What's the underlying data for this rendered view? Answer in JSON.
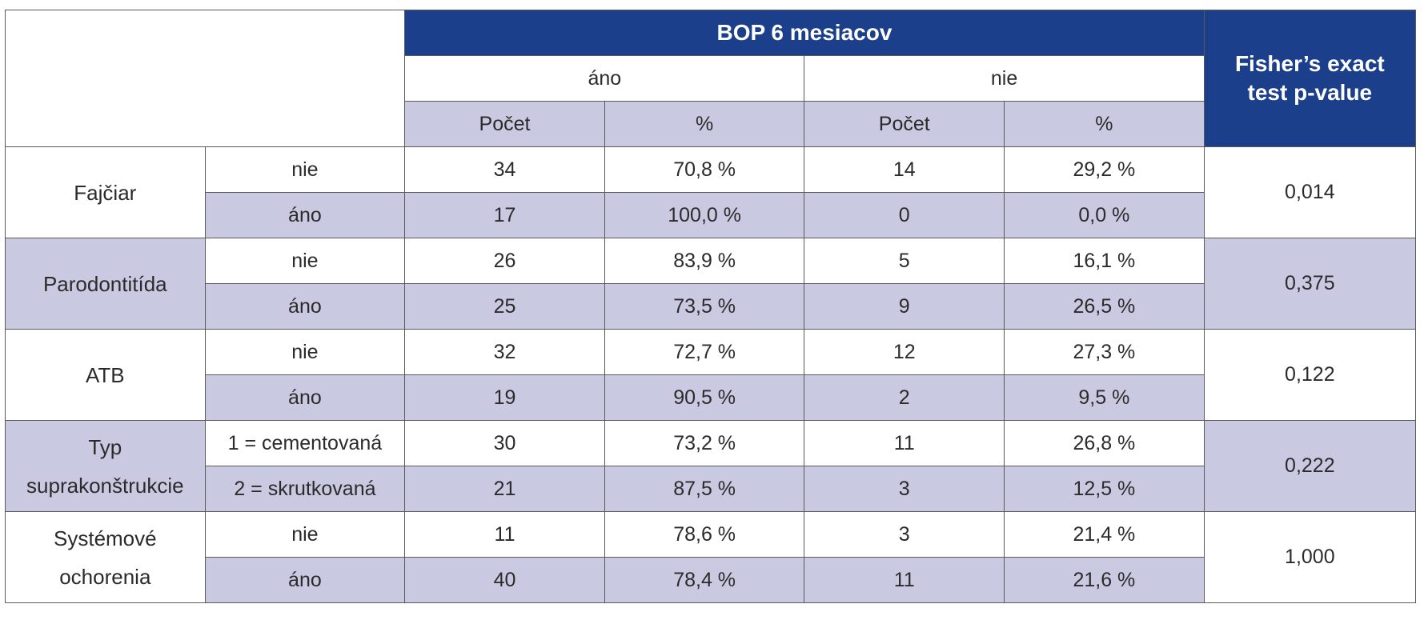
{
  "header": {
    "group_title": "BOP 6 mesiacov",
    "yes_label": "áno",
    "no_label": "nie",
    "count_label": "Počet",
    "pct_label": "%",
    "fisher_line1": "Fisher’s exact",
    "fisher_line2": "test p-value"
  },
  "groups": [
    {
      "name_lines": [
        "Fajčiar"
      ],
      "p_value": "0,014",
      "rows": [
        {
          "level": "nie",
          "yes_count": "34",
          "yes_pct": "70,8 %",
          "no_count": "14",
          "no_pct": "29,2 %"
        },
        {
          "level": "áno",
          "yes_count": "17",
          "yes_pct": "100,0 %",
          "no_count": "0",
          "no_pct": "0,0 %"
        }
      ]
    },
    {
      "name_lines": [
        "Parodontitída"
      ],
      "p_value": "0,375",
      "rows": [
        {
          "level": "nie",
          "yes_count": "26",
          "yes_pct": "83,9 %",
          "no_count": "5",
          "no_pct": "16,1 %"
        },
        {
          "level": "áno",
          "yes_count": "25",
          "yes_pct": "73,5 %",
          "no_count": "9",
          "no_pct": "26,5 %"
        }
      ]
    },
    {
      "name_lines": [
        "ATB"
      ],
      "p_value": "0,122",
      "rows": [
        {
          "level": "nie",
          "yes_count": "32",
          "yes_pct": "72,7 %",
          "no_count": "12",
          "no_pct": "27,3 %"
        },
        {
          "level": "áno",
          "yes_count": "19",
          "yes_pct": "90,5 %",
          "no_count": "2",
          "no_pct": "9,5 %"
        }
      ]
    },
    {
      "name_lines": [
        "Typ",
        "suprakonštrukcie"
      ],
      "p_value": "0,222",
      "rows": [
        {
          "level": "1 = cementovaná",
          "yes_count": "30",
          "yes_pct": "73,2 %",
          "no_count": "11",
          "no_pct": "26,8 %"
        },
        {
          "level": "2 = skrutkovaná",
          "yes_count": "21",
          "yes_pct": "87,5 %",
          "no_count": "3",
          "no_pct": "12,5 %"
        }
      ]
    },
    {
      "name_lines": [
        "Systémové",
        "ochorenia"
      ],
      "p_value": "1,000",
      "rows": [
        {
          "level": "nie",
          "yes_count": "11",
          "yes_pct": "78,6 %",
          "no_count": "3",
          "no_pct": "21,4 %"
        },
        {
          "level": "áno",
          "yes_count": "40",
          "yes_pct": "78,4 %",
          "no_count": "11",
          "no_pct": "21,6 %"
        }
      ]
    }
  ]
}
